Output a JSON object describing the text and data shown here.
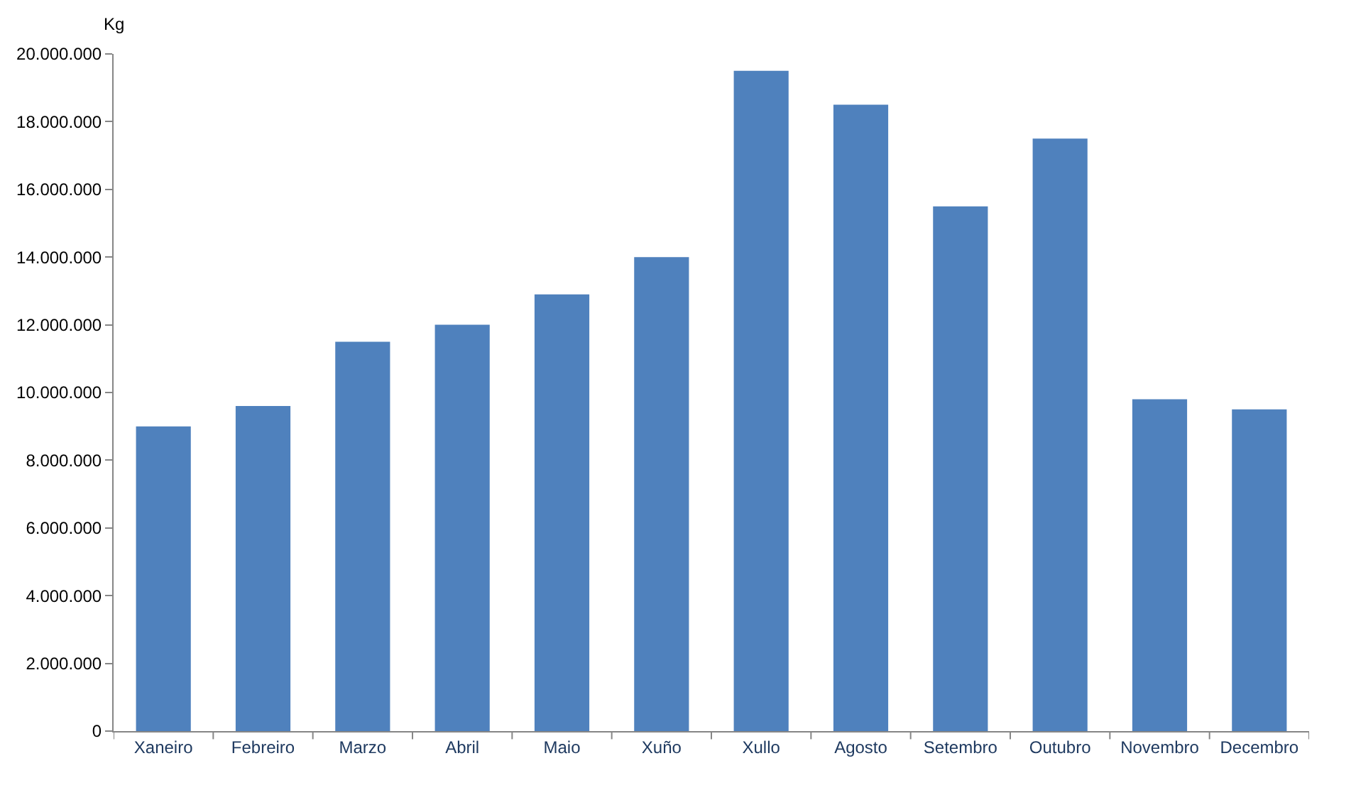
{
  "chart_data": {
    "type": "bar",
    "ylabel": "Kg",
    "categories": [
      "Xaneiro",
      "Febreiro",
      "Marzo",
      "Abril",
      "Maio",
      "Xuño",
      "Xullo",
      "Agosto",
      "Setembro",
      "Outubro",
      "Novembro",
      "Decembro"
    ],
    "values": [
      9000000,
      9600000,
      11500000,
      12000000,
      12900000,
      14000000,
      19500000,
      18500000,
      15500000,
      17500000,
      9800000,
      9500000
    ],
    "color": "#4f81bd",
    "ylim": [
      0,
      20000000
    ],
    "yticks": [
      0,
      {
        "value": 2000000,
        "label": "2.000.000"
      },
      {
        "value": 4000000,
        "label": "4.000.000"
      },
      {
        "value": 6000000,
        "label": "6.000.000"
      },
      {
        "value": 8000000,
        "label": "8.000.000"
      },
      {
        "value": 10000000,
        "label": "10.000.000"
      },
      {
        "value": 12000000,
        "label": "12.000.000"
      },
      {
        "value": 14000000,
        "label": "14.000.000"
      },
      {
        "value": 16000000,
        "label": "16.000.000"
      },
      {
        "value": 18000000,
        "label": "18.000.000"
      },
      {
        "value": 20000000,
        "label": "20.000.000"
      }
    ]
  }
}
